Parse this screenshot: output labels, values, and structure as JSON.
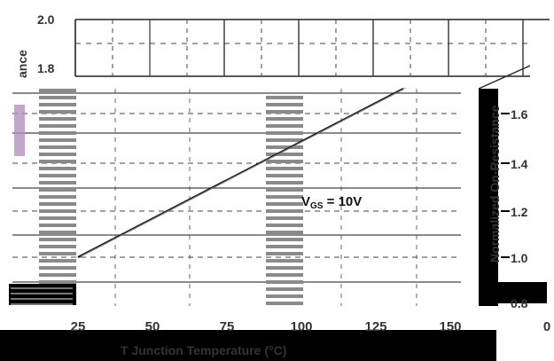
{
  "chart_data": {
    "type": "line",
    "title": "",
    "xlabel": "T  Junction Temperature (°C)",
    "ylabel": "Normalized On-Resistance",
    "ylabel_left_fragment": "ance",
    "x_ticks": [
      "25",
      "50",
      "75",
      "100",
      "125",
      "150"
    ],
    "x_tick_extra": "0",
    "left_y_ticks": [
      "2.0",
      "1.8"
    ],
    "right_y_ticks": [
      "1.6",
      "1.4",
      "1.2",
      "1.0",
      "0.8"
    ],
    "xlim": [
      0,
      175
    ],
    "ylim": [
      0.8,
      2.0
    ],
    "grid": true,
    "annotation": "VGS = 10V",
    "annotation_main": "V",
    "annotation_sub": "GS",
    "annotation_rest": " = 10V",
    "series": [
      {
        "x": [
          25,
          133
        ],
        "y": [
          1.0,
          1.7
        ]
      }
    ],
    "colors": {
      "line": "#111111",
      "grid": "#444444",
      "text": "#333333"
    }
  }
}
